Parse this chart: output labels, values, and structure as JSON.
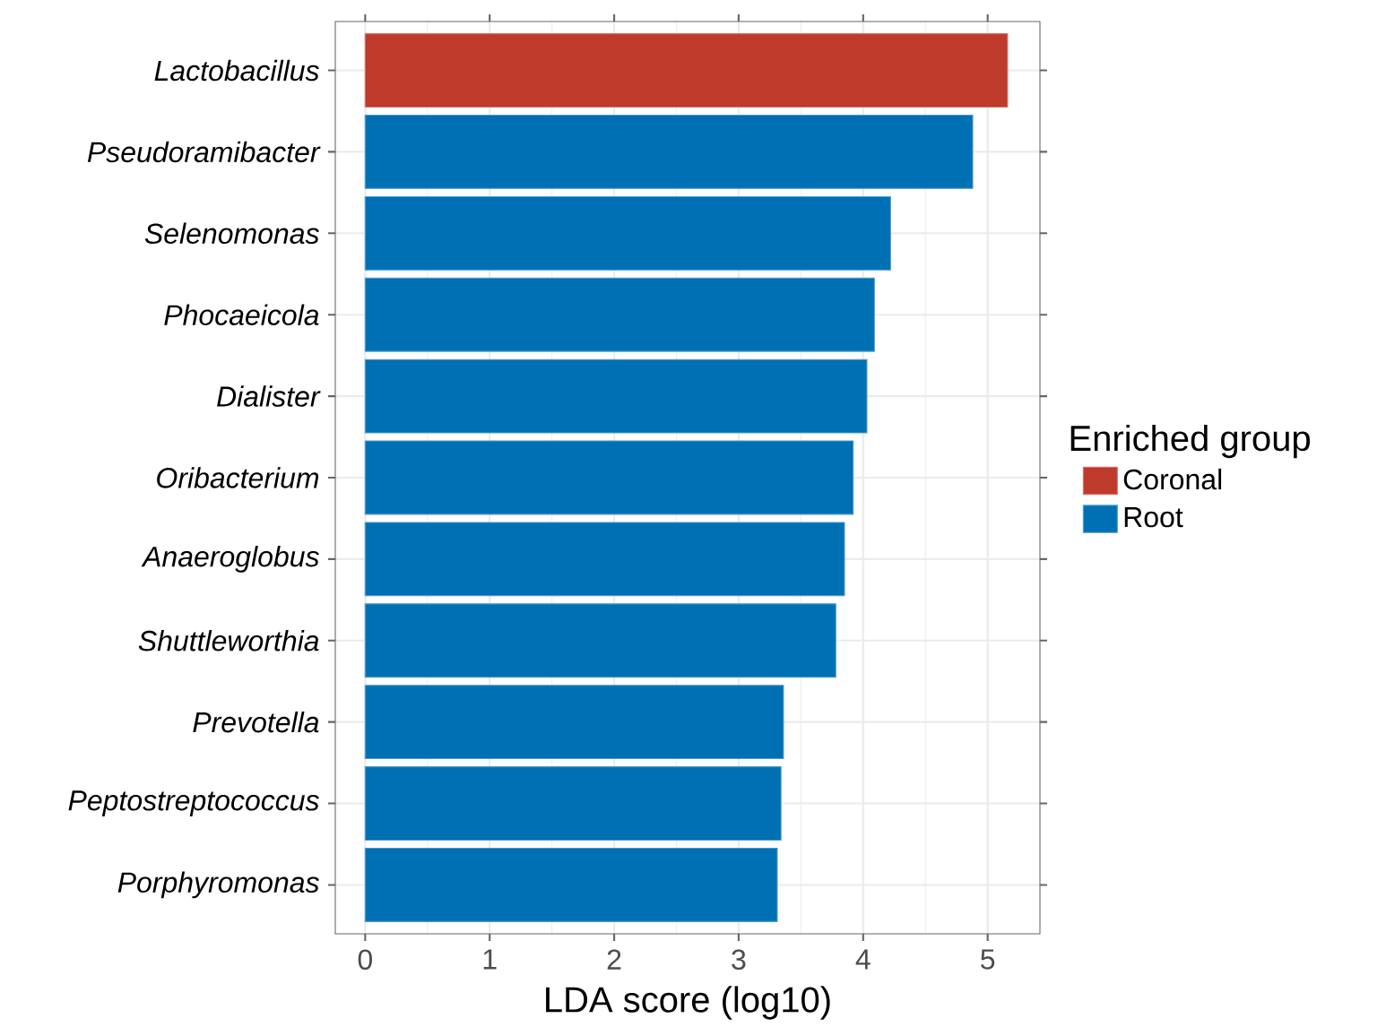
{
  "chart_data": {
    "type": "bar",
    "orientation": "horizontal",
    "xlabel": "LDA score (log10)",
    "legend_title": "Enriched group",
    "categories": [
      "Lactobacillus",
      "Pseudoramibacter",
      "Selenomonas",
      "Phocaeicola",
      "Dialister",
      "Oribacterium",
      "Anaeroglobus",
      "Shuttleworthia",
      "Prevotella",
      "Peptostreptococcus",
      "Porphyromonas"
    ],
    "series": [
      {
        "name": "Coronal",
        "color": "#be3a2b",
        "values": [
          5.16,
          null,
          null,
          null,
          null,
          null,
          null,
          null,
          null,
          null,
          null
        ]
      },
      {
        "name": "Root",
        "color": "#0070b4",
        "values": [
          null,
          4.88,
          4.22,
          4.09,
          4.03,
          3.92,
          3.85,
          3.78,
          3.36,
          3.34,
          3.31
        ]
      }
    ],
    "xlim": [
      -0.24,
      5.42
    ],
    "xticks": [
      0,
      1,
      2,
      3,
      4,
      5
    ],
    "grid": true,
    "legend": "right"
  }
}
